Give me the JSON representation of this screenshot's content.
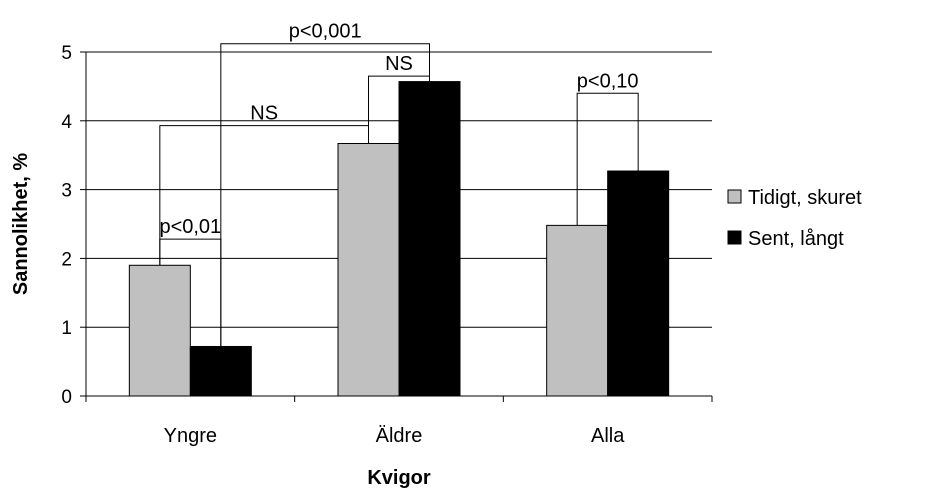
{
  "chart_data": {
    "type": "bar",
    "title": "",
    "xlabel": "Kvigor",
    "ylabel": "Sannolikhet, %",
    "categories": [
      "Yngre",
      "Äldre",
      "Alla"
    ],
    "series": [
      {
        "name": "Tidigt, skuret",
        "color": "#c0c0c0",
        "values": [
          1.9,
          3.67,
          2.48
        ]
      },
      {
        "name": "Sent, långt",
        "color": "#000000",
        "values": [
          0.72,
          4.57,
          3.27
        ]
      }
    ],
    "ylim": [
      0,
      5
    ],
    "yticks": [
      0,
      1,
      2,
      3,
      4,
      5
    ],
    "grid": true,
    "legend_position": "right",
    "annotations": [
      {
        "label": "p<0,01",
        "from": {
          "category": 0,
          "series": 0
        },
        "to": {
          "category": 0,
          "series": 1
        },
        "level": 2.28
      },
      {
        "label": "NS",
        "from": {
          "category": 0,
          "series": 0
        },
        "to": {
          "category": 1,
          "series": 0
        },
        "level": 3.93
      },
      {
        "label": "p<0,001",
        "from": {
          "category": 0,
          "series": 1
        },
        "to": {
          "category": 1,
          "series": 1
        },
        "level": 5.12
      },
      {
        "label": "NS",
        "from": {
          "category": 1,
          "series": 0
        },
        "to": {
          "category": 1,
          "series": 1
        },
        "level": 4.65
      },
      {
        "label": "p<0,10",
        "from": {
          "category": 2,
          "series": 0
        },
        "to": {
          "category": 2,
          "series": 1
        },
        "level": 4.4
      }
    ]
  }
}
